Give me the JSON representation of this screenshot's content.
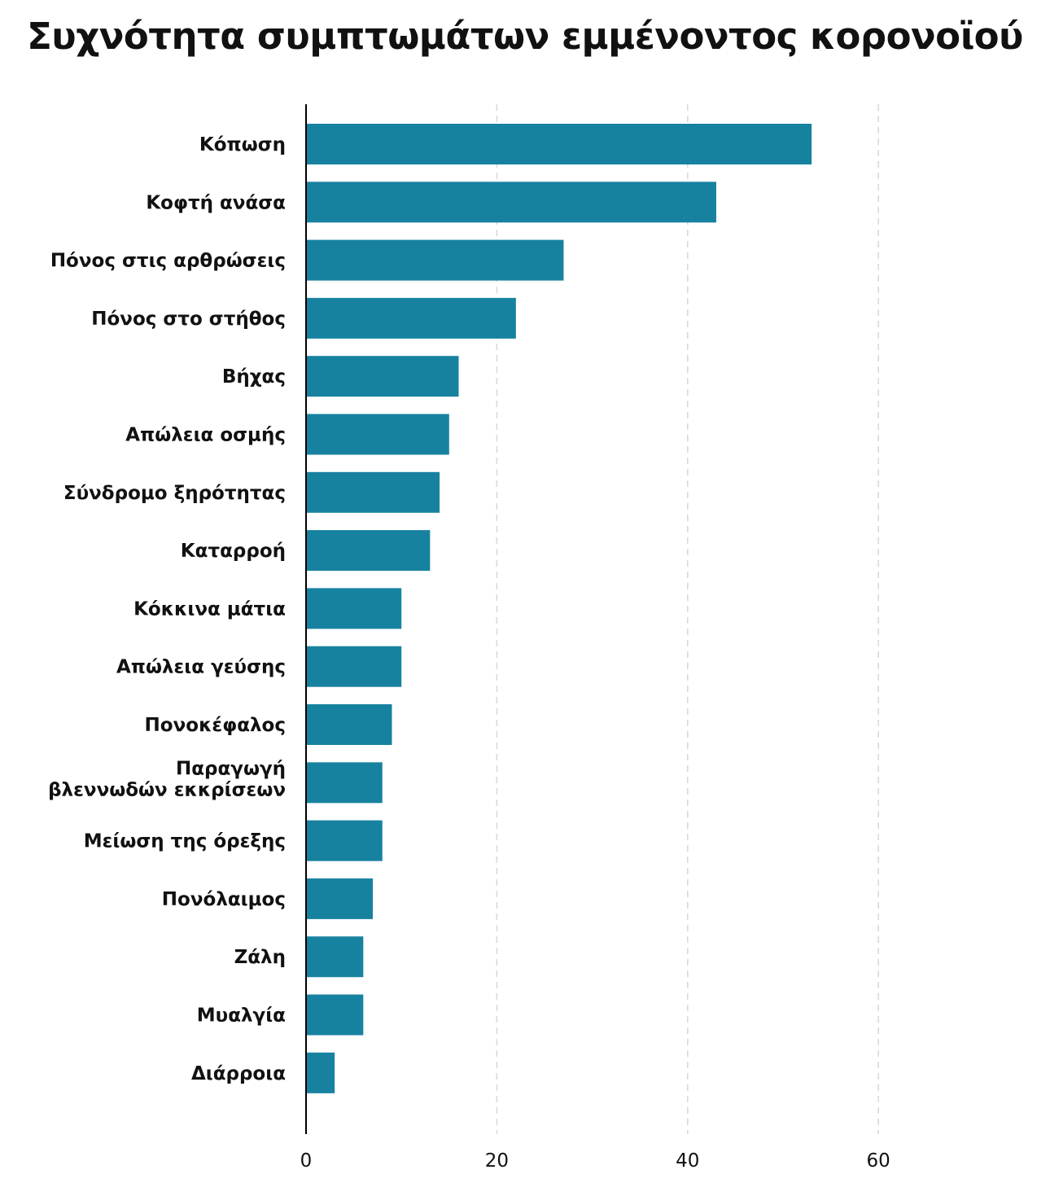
{
  "chart_data": {
    "type": "bar",
    "orientation": "horizontal",
    "title": "Συχνότητα συμπτωμάτων εμμένοντος κορονοϊού",
    "xlabel": "",
    "ylabel": "",
    "categories": [
      "Κόπωση",
      "Κοφτή ανάσα",
      "Πόνος στις αρθρώσεις",
      "Πόνος στο στήθος",
      "Βήχας",
      "Απώλεια οσμής",
      "Σύνδρομο ξηρότητας",
      "Καταρροή",
      "Κόκκινα μάτια",
      "Απώλεια γεύσης",
      "Πονοκέφαλος",
      "Παραγωγή βλεννωδών εκκρίσεων",
      "Μείωση της όρεξης",
      "Πονόλαιμος",
      "Ζάλη",
      "Μυαλγία",
      "Διάρροια"
    ],
    "values": [
      53,
      43,
      27,
      22,
      16,
      15,
      14,
      13,
      10,
      10,
      9,
      8,
      8,
      7,
      6,
      6,
      3
    ],
    "xlim": [
      0,
      60
    ],
    "xticks": [
      "0",
      "20",
      "40",
      "60"
    ],
    "grid": "vertical dashed",
    "bar_color": "#1782a0",
    "grid_color": "#d9d9d9",
    "axis_color": "#000000"
  }
}
